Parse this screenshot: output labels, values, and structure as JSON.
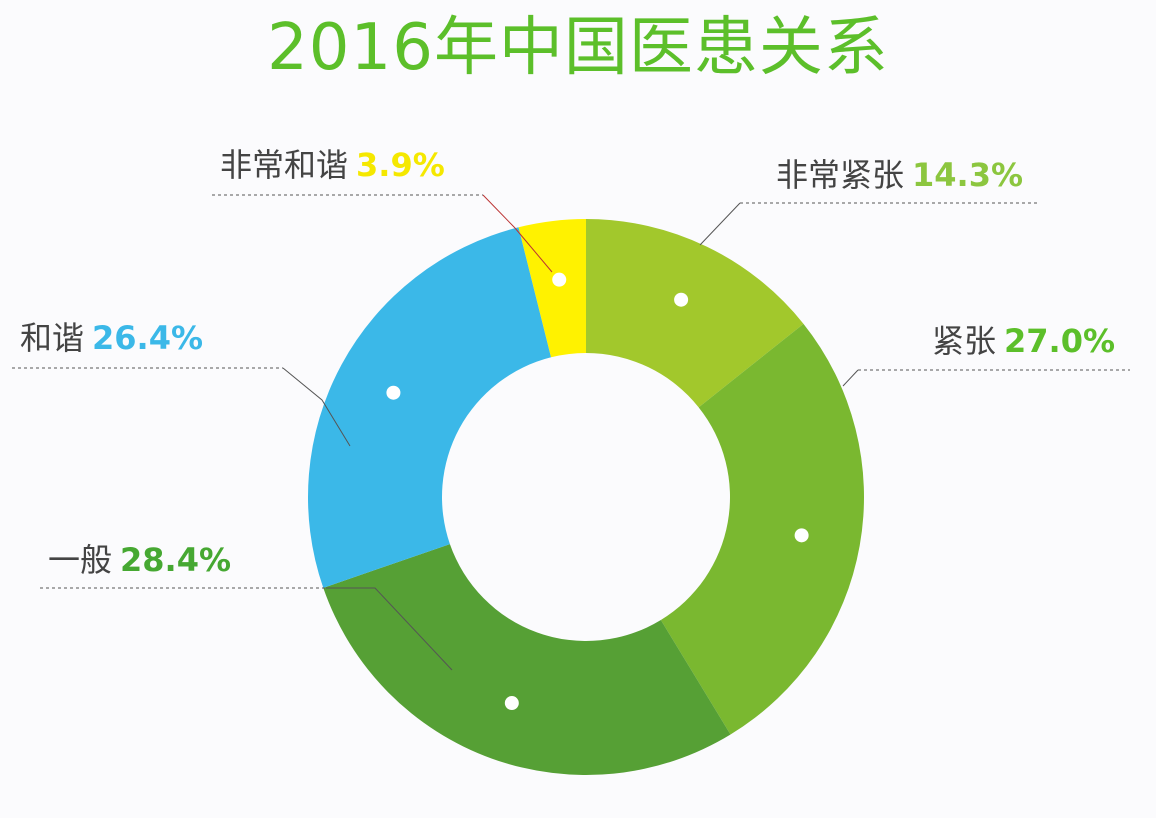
{
  "title": "2016年中国医患关系",
  "chart_data": {
    "type": "pie",
    "variant": "donut",
    "title": "2016年中国医患关系",
    "categories": [
      "非常紧张",
      "紧张",
      "一般",
      "和谐",
      "非常和谐"
    ],
    "values": [
      14.3,
      27.0,
      28.4,
      26.4,
      3.9
    ],
    "unit": "%",
    "colors": [
      "#a2c82c",
      "#7ab830",
      "#56a035",
      "#3bb8e8",
      "#fff200"
    ],
    "start_angle": "12 o'clock",
    "direction": "clockwise",
    "legend_position": "callout labels"
  },
  "labels": [
    {
      "name": "非常紧张",
      "pct": "14.3%",
      "color": "#8cc63f"
    },
    {
      "name": "紧张",
      "pct": "27.0%",
      "color": "#5cbf2a"
    },
    {
      "name": "一般",
      "pct": "28.4%",
      "color": "#46a832"
    },
    {
      "name": "和谐",
      "pct": "26.4%",
      "color": "#3bb8e8"
    },
    {
      "name": "非常和谐",
      "pct": "3.9%",
      "color": "#f5e800"
    }
  ]
}
